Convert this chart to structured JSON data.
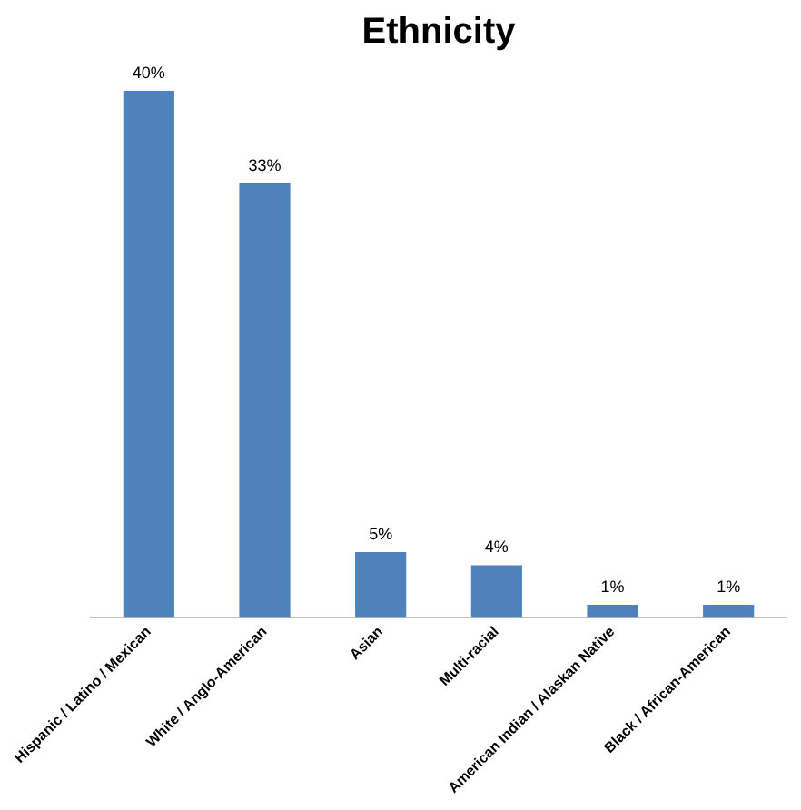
{
  "chart_data": {
    "type": "bar",
    "title": "Ethnicity",
    "categories": [
      "Hispanic / Latino / Mexican",
      "White / Anglo-American",
      "Asian",
      "Multi-racial",
      "American Indian / Alaskan Native",
      "Black / African-American"
    ],
    "values": [
      40,
      33,
      5,
      4,
      1,
      1
    ],
    "value_labels": [
      "40%",
      "33%",
      "5%",
      "4%",
      "1%",
      "1%"
    ],
    "color": "#4f81bd",
    "grid": false,
    "legend": false
  }
}
